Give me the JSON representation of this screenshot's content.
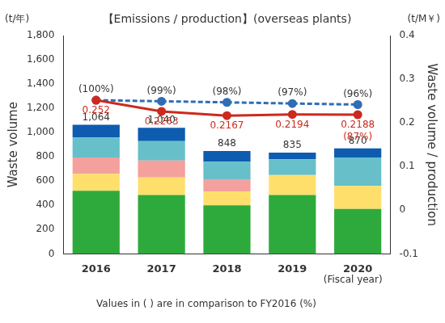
{
  "chart_data": {
    "type": "bar",
    "title": "【Emissions / production】(overseas plants)",
    "y_unit": "(t/年)",
    "y2_unit": "(t/M￥)",
    "y_label": "Waste volume",
    "y2_label": "Waste volume / production",
    "x_label": "(Fiscal year)",
    "note": "Values in ( ) are in comparison to FY2016 (%)",
    "categories": [
      "2016",
      "2017",
      "2018",
      "2019",
      "2020"
    ],
    "stacked": true,
    "grid": false,
    "series": [
      {
        "type": "bar",
        "color": "#2eaa3c",
        "values": [
          520,
          485,
          400,
          485,
          370
        ]
      },
      {
        "type": "bar",
        "color": "#ffdf6b",
        "values": [
          140,
          145,
          115,
          165,
          190
        ]
      },
      {
        "type": "bar",
        "color": "#f4a09c",
        "values": [
          135,
          140,
          95,
          0,
          0
        ]
      },
      {
        "type": "bar",
        "color": "#67bfc9",
        "values": [
          165,
          160,
          150,
          130,
          235
        ]
      },
      {
        "type": "bar",
        "color": "#0d5cb0",
        "values": [
          104,
          110,
          88,
          55,
          75
        ]
      },
      {
        "type": "line",
        "axis": "y2",
        "color": "#cc2a1e",
        "marker": "circle",
        "line_style": "solid",
        "data_labels": true,
        "values": [
          0.252,
          0.2263,
          0.2167,
          0.2194,
          0.2188
        ],
        "percent_labels": [
          null,
          null,
          null,
          null,
          "(87%)"
        ]
      },
      {
        "type": "line",
        "axis": "y2",
        "color": "#2f6db5",
        "marker": "circle",
        "line_style": "dashed",
        "data_labels": false,
        "values": [
          0.252,
          0.2495,
          0.247,
          0.2444,
          0.2419
        ],
        "percent_labels": [
          "(100%)",
          "(99%)",
          "(98%)",
          "(97%)",
          "(96%)"
        ]
      }
    ],
    "totals": {
      "values": [
        1064,
        1040,
        848,
        835,
        870
      ],
      "value_labels": [
        "1,064",
        "1,040",
        "848",
        "835",
        "870"
      ]
    },
    "ylim": [
      0,
      1800
    ],
    "yticks": [
      0,
      200,
      400,
      600,
      800,
      {
        "value": 1000,
        "label": "1,000"
      },
      {
        "value": 1200,
        "label": "1,200"
      },
      {
        "value": 1400,
        "label": "1,400"
      },
      {
        "value": 1600,
        "label": "1,600"
      },
      {
        "value": 1800,
        "label": "1,800"
      }
    ],
    "y2lim": [
      -0.1,
      0.4
    ],
    "y2ticks": [
      -0.1,
      0,
      0.1,
      0.2,
      0.3,
      0.4
    ]
  }
}
